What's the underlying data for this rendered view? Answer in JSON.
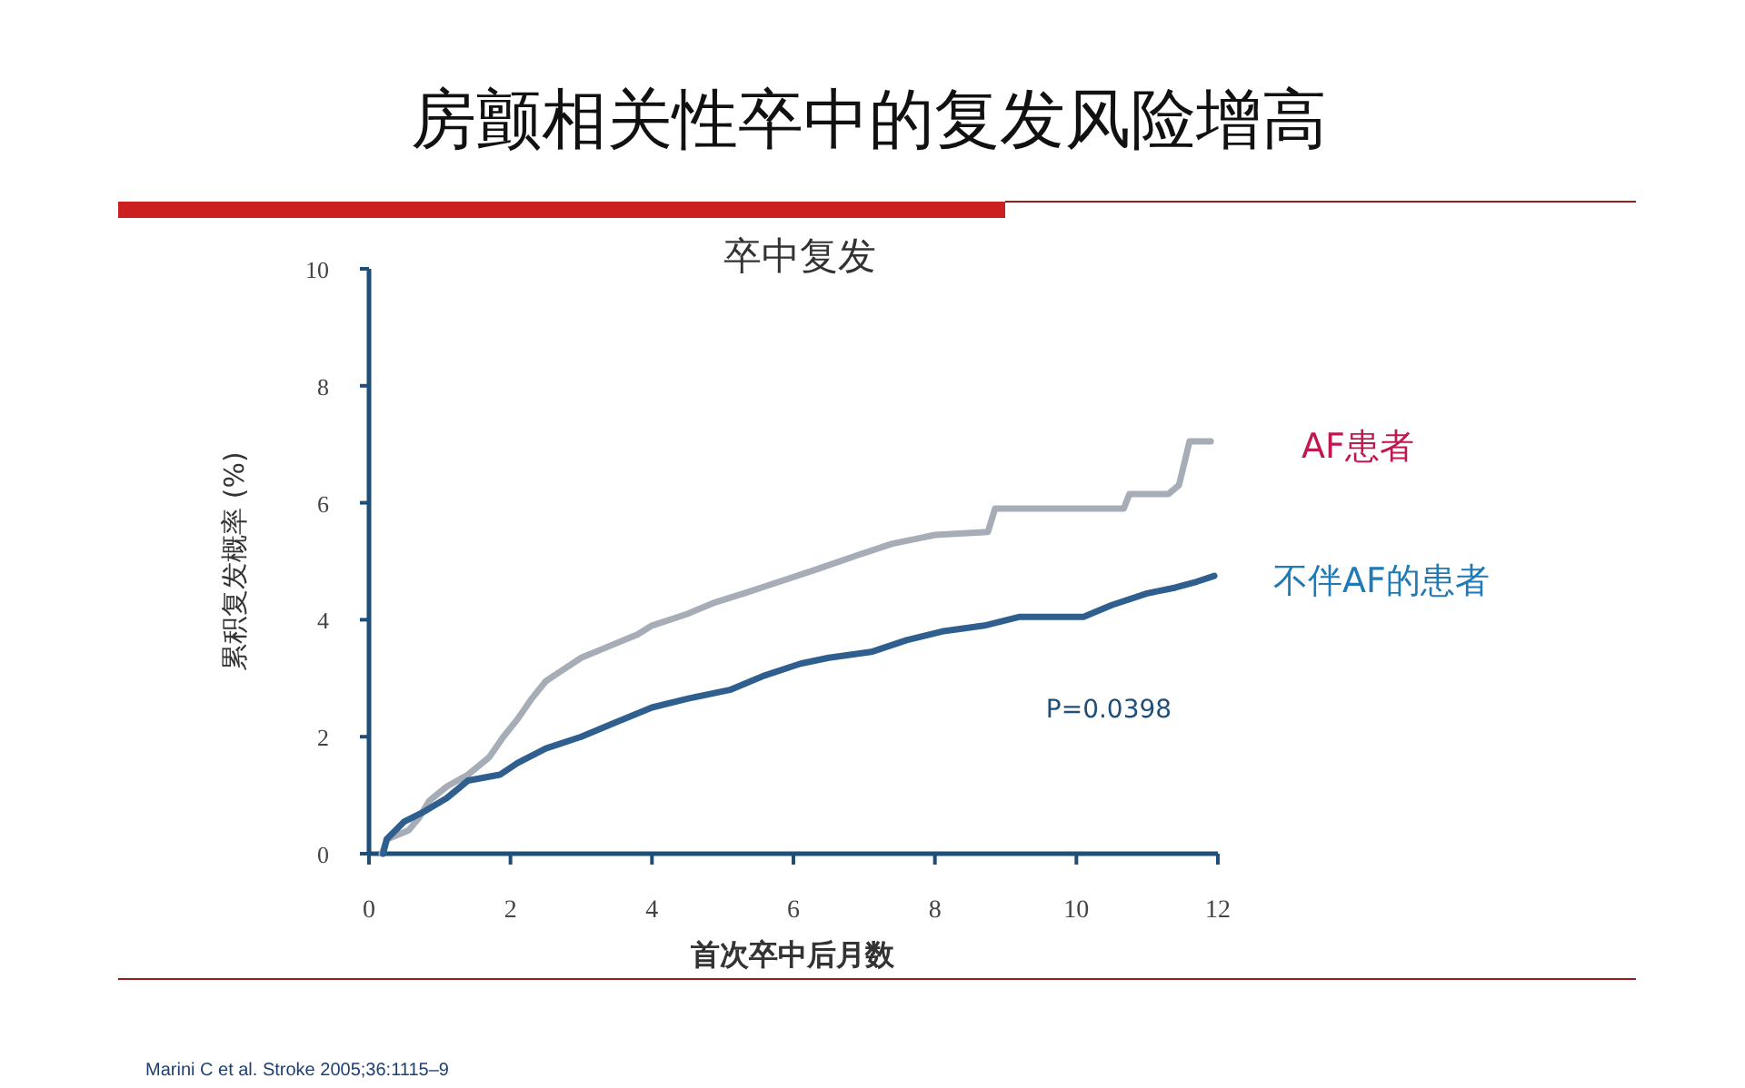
{
  "chart_data": {
    "type": "line",
    "title": "房颤相关性卒中的复发风险增高",
    "subtitle": "卒中复发",
    "xlabel": "首次卒中后月数",
    "ylabel": "累积复发概率 (%)",
    "xlim": [
      0,
      12
    ],
    "xticks": [
      0,
      2,
      4,
      6,
      8,
      10,
      12
    ],
    "ylim": [
      0,
      10
    ],
    "yticks": [
      0,
      2,
      4,
      6,
      8,
      10
    ],
    "grid": false,
    "marker": "none",
    "line_style": "solid",
    "annotations": [
      "P=0.0398",
      "Marini C et al. Stroke 2005;36:1115–9"
    ],
    "series": [
      {
        "name": "AF患者",
        "color": "#a6adb6",
        "x": [
          0.18,
          0.26,
          0.56,
          0.7,
          0.85,
          1.1,
          1.4,
          1.7,
          1.9,
          2.1,
          2.3,
          2.5,
          2.75,
          3.0,
          3.4,
          3.8,
          4.0,
          4.5,
          4.9,
          5.3,
          5.8,
          6.3,
          6.9,
          7.4,
          8.0,
          8.75,
          8.85,
          10.67,
          10.75,
          11.3,
          11.45,
          11.6,
          11.9
        ],
        "values": [
          0,
          0.25,
          0.4,
          0.6,
          0.9,
          1.15,
          1.35,
          1.65,
          2.0,
          2.3,
          2.65,
          2.95,
          3.15,
          3.35,
          3.55,
          3.75,
          3.9,
          4.1,
          4.3,
          4.45,
          4.65,
          4.85,
          5.1,
          5.3,
          5.45,
          5.5,
          5.9,
          5.9,
          6.15,
          6.15,
          6.3,
          7.05,
          7.05
        ]
      },
      {
        "name": "不伴AF的患者",
        "color": "#2e5f8f",
        "x": [
          0.2,
          0.25,
          0.5,
          0.75,
          1.1,
          1.4,
          1.85,
          2.1,
          2.5,
          3.0,
          3.5,
          4.0,
          4.5,
          5.1,
          5.6,
          6.1,
          6.5,
          7.1,
          7.6,
          8.1,
          8.7,
          9.2,
          10.1,
          10.5,
          11.0,
          11.4,
          11.7,
          11.95
        ],
        "values": [
          0,
          0.25,
          0.55,
          0.7,
          0.95,
          1.25,
          1.35,
          1.55,
          1.8,
          2.0,
          2.25,
          2.5,
          2.65,
          2.8,
          3.05,
          3.25,
          3.35,
          3.45,
          3.65,
          3.8,
          3.9,
          4.05,
          4.05,
          4.25,
          4.45,
          4.55,
          4.65,
          4.75
        ]
      }
    ]
  }
}
